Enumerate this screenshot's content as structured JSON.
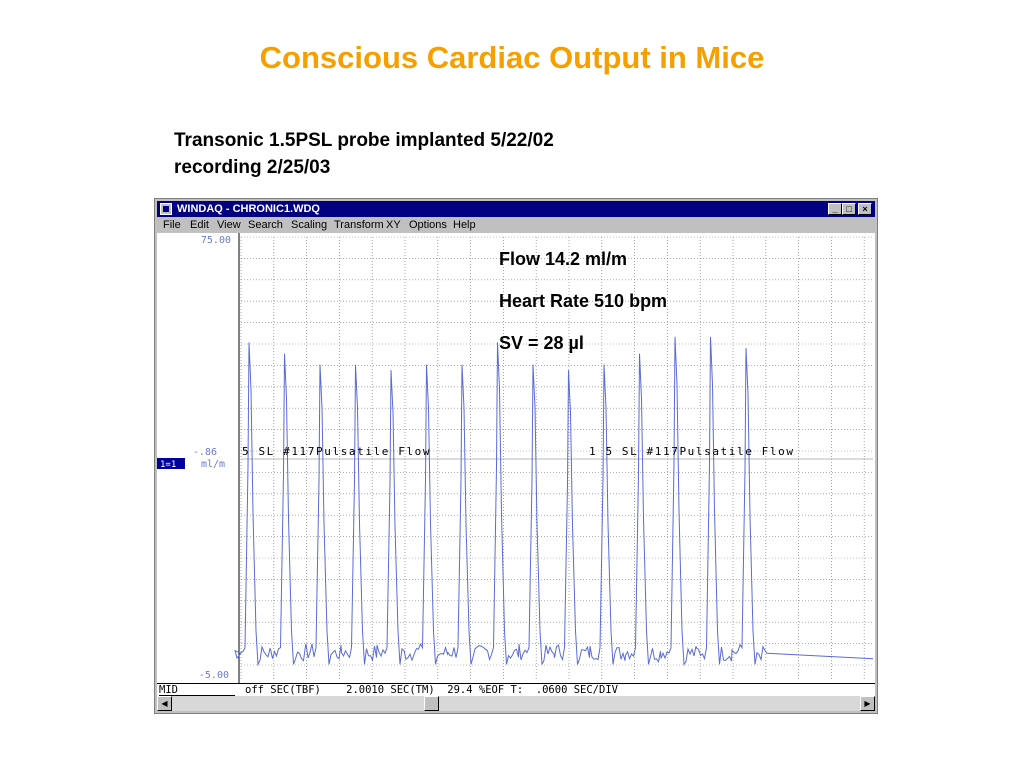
{
  "slide": {
    "title": "Conscious Cardiac Output in Mice",
    "subtitle_line1": "Transonic 1.5PSL probe implanted 5/22/02",
    "subtitle_line2": "recording 2/25/03"
  },
  "window": {
    "title": "WINDAQ - CHRONIC1.WDQ",
    "minimize": "_",
    "maximize": "□",
    "close": "×"
  },
  "menu": {
    "file": "File",
    "edit": "Edit",
    "view": "View",
    "search": "Search",
    "scaling": "Scaling",
    "transform": "Transform",
    "xy": "XY",
    "options": "Options",
    "help": "Help"
  },
  "plot": {
    "y_top": "75.00",
    "y_mid": "-.86",
    "y_bottom": "-5.00",
    "channel_label": "1=1",
    "unit": "ml/m",
    "channel_annotation_1": "5 SL #117Pulsatile Flow",
    "channel_annotation_2": "1 5 SL #117Pulsatile Flow",
    "stats": {
      "flow": "Flow 14.2 ml/m",
      "heart_rate": "Heart Rate  510 bpm",
      "sv": "SV = 28 µl"
    },
    "trace_color": "#5a6bd6",
    "grid_color": "#808080",
    "peaks": [
      56,
      54,
      52,
      52,
      51,
      52,
      52,
      56,
      52,
      51,
      52,
      54,
      57,
      57,
      55
    ]
  },
  "status": {
    "mid": "MID",
    "text": "off SEC(TBF)    2.0010 SEC(TM)  29.4 %EOF T:  .0600 SEC/DIV"
  },
  "scrollbar": {
    "left_arrow": "◀",
    "right_arrow": "▶"
  }
}
